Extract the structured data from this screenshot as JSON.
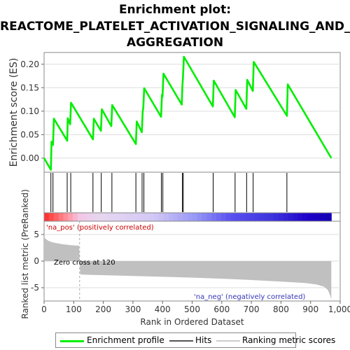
{
  "title_lines": [
    "Enrichment plot:",
    "REACTOME_PLATELET_ACTIVATION_SIGNALING_AND_",
    "AGGREGATION"
  ],
  "colors": {
    "es_line": "#00ee00",
    "hit": "#000000",
    "metric_fill": "#c0c0c0",
    "pos_label": "#cc0000",
    "neg_label": "#3333bb",
    "zero_cross_line": "#aaaaaa"
  },
  "legend": {
    "enrichment_profile": "Enrichment profile",
    "hits": "Hits",
    "ranking_metric": "Ranking metric scores"
  },
  "chart_data": {
    "type": "line",
    "es_panel": {
      "ylabel": "Enrichment score (ES)",
      "ylim": [
        -0.03,
        0.225
      ],
      "yticks": [
        "0.00",
        "0.05",
        "0.10",
        "0.15",
        "0.20"
      ],
      "ytick_values": [
        0.0,
        0.05,
        0.1,
        0.15,
        0.2
      ],
      "series": [
        {
          "x": [
            0,
            23,
            25,
            30,
            33,
            78,
            80,
            88,
            91,
            165,
            168,
            192,
            195,
            227,
            230,
            310,
            313,
            330,
            333,
            335,
            338,
            395,
            398,
            400,
            403,
            465,
            467,
            469,
            472,
            570,
            573,
            644,
            647,
            683,
            686,
            705,
            708,
            820,
            823,
            970
          ],
          "y": [
            0.0,
            -0.025,
            0.035,
            0.028,
            0.084,
            0.037,
            0.085,
            0.072,
            0.118,
            0.04,
            0.084,
            0.058,
            0.104,
            0.068,
            0.113,
            0.03,
            0.078,
            0.055,
            0.1,
            0.107,
            0.149,
            0.088,
            0.135,
            0.131,
            0.18,
            0.114,
            0.152,
            0.172,
            0.216,
            0.11,
            0.165,
            0.087,
            0.145,
            0.105,
            0.167,
            0.143,
            0.205,
            0.09,
            0.157,
            0.0
          ]
        }
      ]
    },
    "hits": [
      23,
      30,
      78,
      90,
      165,
      193,
      229,
      310,
      331,
      337,
      396,
      401,
      467,
      470,
      571,
      645,
      684,
      706,
      820
    ],
    "ranking_panel": {
      "ylabel": "Ranked list metric (PreRanked)",
      "xlabel": "Rank in Ordered Dataset",
      "ylim": [
        -7.5,
        7.5
      ],
      "yticks": [
        "-5",
        "0",
        "5"
      ],
      "ytick_values": [
        -5,
        0,
        5
      ],
      "xlim": [
        0,
        1000
      ],
      "xticks": [
        "0",
        "100",
        "200",
        "300",
        "400",
        "500",
        "600",
        "700",
        "800",
        "900",
        "1,000"
      ],
      "xtick_values": [
        0,
        100,
        200,
        300,
        400,
        500,
        600,
        700,
        800,
        900,
        1000
      ],
      "n_genes": 970,
      "zero_cross": 120,
      "zero_cross_label": "Zero cross at 120",
      "pos_label": "'na_pos' (positively correlated)",
      "neg_label": "'na_neg' (negatively correlated)",
      "metric_profile": {
        "x": [
          0,
          5,
          15,
          30,
          60,
          90,
          118,
          120,
          122,
          135,
          200,
          300,
          400,
          500,
          600,
          700,
          800,
          880,
          920,
          945,
          958,
          965,
          970
        ],
        "y": [
          4.5,
          4.2,
          3.8,
          3.5,
          3.2,
          3.0,
          2.9,
          0,
          -2.5,
          -2.55,
          -2.65,
          -2.8,
          -2.95,
          -3.1,
          -3.3,
          -3.55,
          -3.85,
          -4.1,
          -4.4,
          -4.8,
          -5.4,
          -6.3,
          -7.2
        ]
      }
    }
  }
}
